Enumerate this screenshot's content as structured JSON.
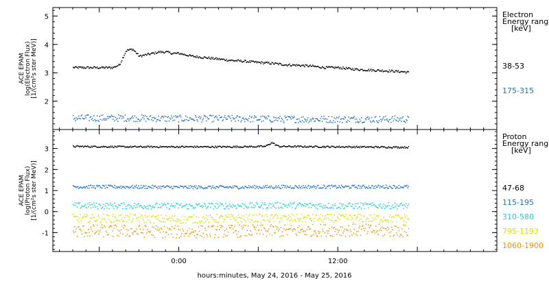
{
  "chart_data": [
    {
      "type": "scatter",
      "panel": "electron",
      "ylabel_lines": [
        "ACE EPAM",
        "log(Electron Flux)",
        "[1/(cm²s ster MeV)]"
      ],
      "legend_title_lines": [
        "Electron",
        "Energy ranges",
        "[keV]"
      ],
      "yticks": [
        2,
        3,
        4,
        5
      ],
      "ylim": [
        1.0,
        5.3
      ],
      "grid": false,
      "series": [
        {
          "name": "38-53",
          "color": "#000000",
          "x": [
            -8,
            -6,
            -5,
            -4.5,
            -4,
            -3.5,
            -3,
            -2.5,
            -2,
            -1.5,
            -1,
            -0.5,
            0,
            1,
            2,
            3,
            4,
            5,
            6,
            7,
            8,
            9,
            10,
            11,
            12,
            13,
            14,
            15,
            16,
            17,
            17.3
          ],
          "y": [
            3.2,
            3.2,
            3.2,
            3.3,
            3.8,
            3.85,
            3.6,
            3.65,
            3.7,
            3.75,
            3.75,
            3.7,
            3.7,
            3.6,
            3.55,
            3.5,
            3.45,
            3.42,
            3.38,
            3.35,
            3.3,
            3.28,
            3.25,
            3.2,
            3.2,
            3.15,
            3.12,
            3.1,
            3.08,
            3.05,
            3.03
          ],
          "jitter": 0.04
        },
        {
          "name": "175-315",
          "color": "#1e6fc8",
          "x": [
            -8,
            -4,
            0,
            4,
            8,
            12,
            17.3
          ],
          "y": [
            1.42,
            1.42,
            1.4,
            1.4,
            1.38,
            1.38,
            1.38
          ],
          "jitter": 0.12
        }
      ]
    },
    {
      "type": "scatter",
      "panel": "proton",
      "ylabel_lines": [
        "ACE EPAM",
        "log(Proton Flux)",
        "[1/(cm²s ster MeV)]"
      ],
      "legend_title_lines": [
        "Proton",
        "Energy ranges",
        "[keV]"
      ],
      "yticks": [
        -1,
        0,
        1,
        2,
        3
      ],
      "ylim": [
        -1.9,
        3.9
      ],
      "grid": false,
      "series": [
        {
          "name": "47-68",
          "color": "#000000",
          "x": [
            -8,
            -4,
            0,
            4,
            6.5,
            7,
            7.5,
            12,
            17.3
          ],
          "y": [
            3.12,
            3.1,
            3.1,
            3.1,
            3.12,
            3.3,
            3.12,
            3.1,
            3.08
          ],
          "jitter": 0.04
        },
        {
          "name": "115-195",
          "color": "#1e6fc8",
          "x": [
            -8,
            -4,
            0,
            4,
            8,
            12,
            17.3
          ],
          "y": [
            1.2,
            1.2,
            1.18,
            1.18,
            1.2,
            1.2,
            1.2
          ],
          "jitter": 0.08
        },
        {
          "name": "310-580",
          "color": "#20d0d0",
          "x": [
            -8,
            -4,
            0,
            4,
            8,
            12,
            17.3
          ],
          "y": [
            0.3,
            0.3,
            0.28,
            0.3,
            0.32,
            0.3,
            0.3
          ],
          "jitter": 0.15
        },
        {
          "name": "795-1193",
          "color": "#d8e000",
          "x": [
            -8,
            -4,
            0,
            4,
            8,
            12,
            17.3
          ],
          "y": [
            -0.3,
            -0.3,
            -0.35,
            -0.3,
            -0.3,
            -0.3,
            -0.3
          ],
          "jitter": 0.2
        },
        {
          "name": "1060-1900",
          "color": "#f09000",
          "x": [
            -8,
            -4,
            0,
            4,
            8,
            12,
            17.3
          ],
          "y": [
            -0.9,
            -0.9,
            -0.95,
            -0.9,
            -0.9,
            -0.85,
            -0.9
          ],
          "jitter": 0.3
        }
      ]
    }
  ],
  "x_axis": {
    "xlim": [
      -9.5,
      24
    ],
    "major_ticks": [
      {
        "x": 0,
        "label": "0:00"
      },
      {
        "x": 12,
        "label": "12:00"
      }
    ],
    "minor_step": 1,
    "xlabel": "hours:minutes, May 24, 2016 - May 25, 2016"
  }
}
